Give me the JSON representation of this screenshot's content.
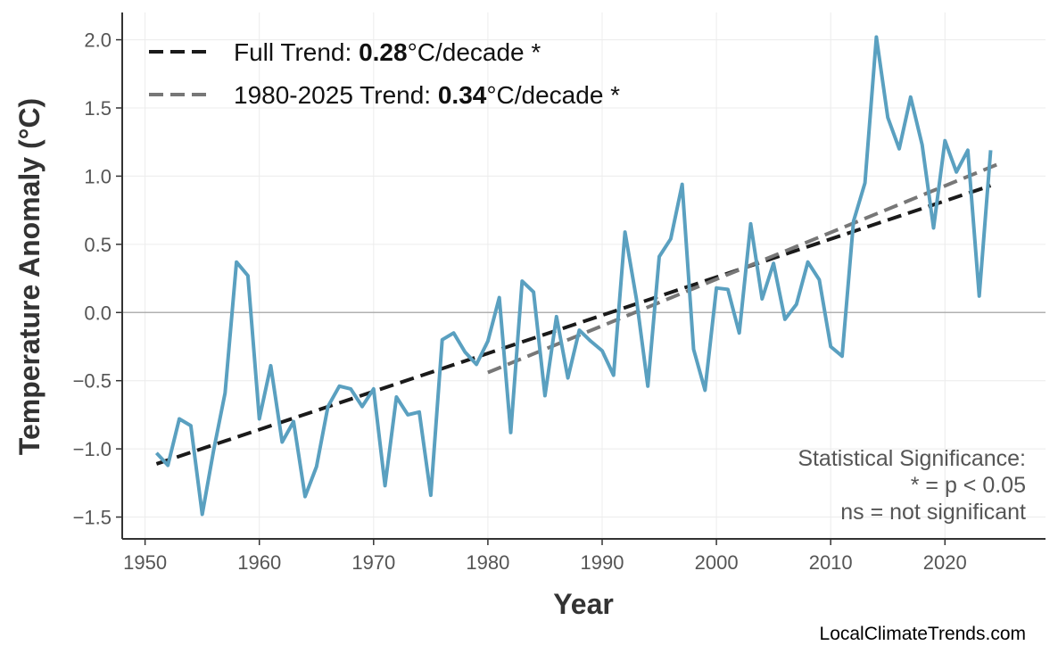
{
  "chart_data": {
    "type": "line",
    "xlabel": "Year",
    "ylabel": "Temperature Anomaly (°C)",
    "xlim": [
      1948,
      2028.8
    ],
    "ylim": [
      -1.66,
      2.2
    ],
    "xticks": [
      1950,
      1960,
      1970,
      1980,
      1990,
      2000,
      2010,
      2020
    ],
    "yticks": [
      -1.5,
      -1.0,
      -0.5,
      0.0,
      0.5,
      1.0,
      1.5,
      2.0
    ],
    "ytick_labels": [
      "−1.5",
      "−1.0",
      "−0.5",
      "0.0",
      "0.5",
      "1.0",
      "1.5",
      "2.0"
    ],
    "grid": true,
    "legend_placement": "top-left",
    "colors": {
      "series": "#5aa0c0",
      "full_trend": "#1a1a1a",
      "recent_trend": "#777777",
      "zero_line": "#b0b0b0",
      "grid": "#ececec"
    },
    "series": [
      {
        "x": [
          1951,
          1952,
          1953,
          1954,
          1955,
          1956,
          1957,
          1958,
          1959,
          1960,
          1961,
          1962,
          1963,
          1964,
          1965,
          1966,
          1967,
          1968,
          1969,
          1970,
          1971,
          1972,
          1973,
          1974,
          1975,
          1976,
          1977,
          1978,
          1979,
          1980,
          1981,
          1982,
          1983,
          1984,
          1985,
          1986,
          1987,
          1988,
          1989,
          1990,
          1991,
          1992,
          1993,
          1994,
          1995,
          1996,
          1997,
          1998,
          1999,
          2000,
          2001,
          2002,
          2003,
          2004,
          2005,
          2006,
          2007,
          2008,
          2009,
          2010,
          2011,
          2012,
          2013,
          2014,
          2015,
          2016,
          2017,
          2018,
          2019,
          2020,
          2021,
          2022,
          2023,
          2024
        ],
        "values": [
          -1.03,
          -1.12,
          -0.78,
          -0.83,
          -1.48,
          -1.01,
          -0.59,
          0.37,
          0.27,
          -0.78,
          -0.39,
          -0.95,
          -0.8,
          -1.35,
          -1.13,
          -0.69,
          -0.54,
          -0.56,
          -0.69,
          -0.56,
          -1.27,
          -0.62,
          -0.75,
          -0.73,
          -1.34,
          -0.2,
          -0.15,
          -0.29,
          -0.38,
          -0.21,
          0.11,
          -0.88,
          0.23,
          0.15,
          -0.61,
          -0.03,
          -0.48,
          -0.13,
          -0.21,
          -0.28,
          -0.46,
          0.59,
          0.1,
          -0.54,
          0.41,
          0.54,
          0.94,
          -0.27,
          -0.57,
          0.18,
          0.17,
          -0.15,
          0.65,
          0.1,
          0.36,
          -0.05,
          0.06,
          0.37,
          0.24,
          -0.25,
          -0.32,
          0.67,
          0.95,
          2.02,
          1.43,
          1.2,
          1.58,
          1.23,
          0.62,
          1.26,
          1.03,
          1.19,
          0.12,
          1.19
        ]
      }
    ],
    "trends": [
      {
        "label_prefix": "Full Trend: ",
        "value": "0.28",
        "label_suffix": "°C/decade *",
        "x": [
          1951,
          2024
        ],
        "y": [
          -1.11,
          0.93
        ],
        "style": "dashed",
        "color": "#1a1a1a"
      },
      {
        "label_prefix": "1980-2025 Trend: ",
        "value": "0.34",
        "label_suffix": "°C/decade *",
        "x": [
          1980,
          2025
        ],
        "y": [
          -0.44,
          1.1
        ],
        "style": "dashed",
        "color": "#777777"
      }
    ],
    "annotation": [
      "Statistical Significance:",
      "* = p < 0.05",
      "ns = not significant"
    ]
  },
  "watermark": "LocalClimateTrends.com"
}
